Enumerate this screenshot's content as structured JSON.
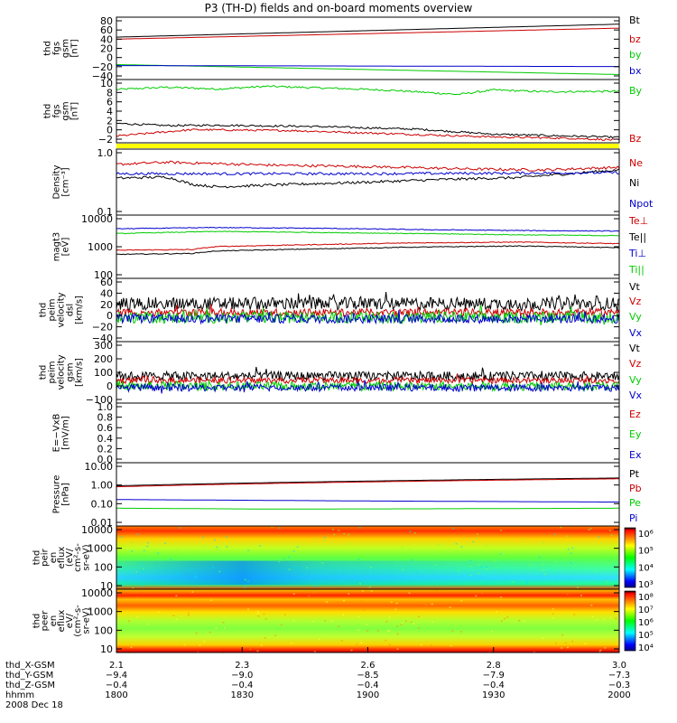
{
  "title": "P3 (TH-D) fields and on-board moments overview",
  "chart_data": [
    {
      "id": "fgs_gsm",
      "type": "line",
      "ylabel": "thd\nfgs\ngsm\n[nT]",
      "yticks": [
        "80",
        "60",
        "40",
        "20",
        "0",
        "−20",
        "−40"
      ],
      "ylim": [
        -40,
        85
      ],
      "series": [
        {
          "name": "Bt",
          "color": "#000000",
          "x": [
            0,
            1
          ],
          "y": [
            45,
            71
          ]
        },
        {
          "name": "bz",
          "color": "#cc0000",
          "x": [
            0,
            1
          ],
          "y": [
            41,
            63
          ]
        },
        {
          "name": "by",
          "color": "#00cc00",
          "x": [
            0,
            1
          ],
          "y": [
            -10,
            -30
          ]
        },
        {
          "name": "bx",
          "color": "#0000cc",
          "x": [
            0,
            1
          ],
          "y": [
            -12,
            -14
          ]
        }
      ]
    },
    {
      "id": "fgs_dsl",
      "type": "line",
      "ylabel": "thd\nfgs\ngsm\n[nT]",
      "yticks": [
        "10",
        "8",
        "6",
        "4",
        "2",
        "0",
        "−2"
      ],
      "ylim": [
        -3.5,
        10.5
      ],
      "series": [
        {
          "name": "By",
          "color": "#00cc00",
          "x": [
            0,
            0.1,
            0.2,
            0.3,
            0.45,
            0.55,
            0.68,
            0.75,
            0.85,
            1
          ],
          "y": [
            8.3,
            8.8,
            8.4,
            9.0,
            8.5,
            8.1,
            7.2,
            8.2,
            7.8,
            7.9
          ]
        },
        {
          "name": "Bx",
          "color": "#000000",
          "x": [
            0,
            0.1,
            0.2,
            0.4,
            0.6,
            0.75,
            0.9,
            1
          ],
          "y": [
            0.8,
            0.3,
            0.4,
            0.1,
            -0.5,
            -1.6,
            -2.0,
            -2.3
          ]
        },
        {
          "name": "Bz",
          "color": "#cc0000",
          "x": [
            0,
            0.15,
            0.35,
            0.55,
            0.75,
            0.9,
            1
          ],
          "y": [
            -2.0,
            -0.6,
            -0.8,
            -1.5,
            -2.2,
            -2.5,
            -2.9
          ]
        }
      ],
      "legend": [
        "By",
        "Bz"
      ]
    },
    {
      "id": "density",
      "type": "line",
      "ylabel": "Density\n[cm⁻³]",
      "yticks": [
        "1.0",
        "0.1"
      ],
      "scale": "log",
      "ylim": [
        0.1,
        1.3
      ],
      "series": [
        {
          "name": "Ne",
          "color": "#cc0000",
          "x": [
            0,
            0.1,
            0.3,
            0.5,
            0.7,
            0.85,
            1
          ],
          "y": [
            0.72,
            0.78,
            0.7,
            0.66,
            0.6,
            0.58,
            0.64
          ]
        },
        {
          "name": "Ni",
          "color": "#000000",
          "x": [
            0,
            0.1,
            0.15,
            0.2,
            0.35,
            0.5,
            0.65,
            0.8,
            0.9,
            1
          ],
          "y": [
            0.42,
            0.44,
            0.33,
            0.3,
            0.33,
            0.36,
            0.4,
            0.43,
            0.5,
            0.58
          ]
        },
        {
          "name": "Npot",
          "color": "#0000cc",
          "x": [
            0,
            0.5,
            1
          ],
          "y": [
            0.5,
            0.5,
            0.52
          ]
        }
      ]
    },
    {
      "id": "temperature",
      "type": "line",
      "ylabel": "magt3\n[eV]",
      "yticks": [
        "10000",
        "1000",
        "100"
      ],
      "scale": "log",
      "ylim": [
        100,
        14000
      ],
      "series": [
        {
          "name": "Te⊥",
          "color": "#cc0000",
          "x": [
            0,
            0.15,
            0.2,
            0.4,
            0.6,
            0.8,
            1
          ],
          "y": [
            900,
            950,
            1200,
            1400,
            1600,
            1700,
            1500
          ]
        },
        {
          "name": "Te||",
          "color": "#000000",
          "x": [
            0,
            0.15,
            0.2,
            0.4,
            0.6,
            0.8,
            1
          ],
          "y": [
            650,
            700,
            850,
            1000,
            1150,
            1250,
            1100
          ]
        },
        {
          "name": "Ti⊥",
          "color": "#0000cc",
          "x": [
            0,
            0.2,
            0.4,
            0.6,
            0.8,
            1
          ],
          "y": [
            4800,
            5300,
            5000,
            4500,
            4200,
            4000
          ]
        },
        {
          "name": "Ti||",
          "color": "#00cc00",
          "x": [
            0,
            0.2,
            0.4,
            0.6,
            0.8,
            1
          ],
          "y": [
            3300,
            3900,
            3600,
            3300,
            3000,
            2800
          ]
        }
      ]
    },
    {
      "id": "velocity_dsl",
      "type": "line",
      "ylabel": "thd\npeim\nvelocity\ndsl\n[km/s]",
      "yticks": [
        "60",
        "40",
        "20",
        "0",
        "−20",
        "−40"
      ],
      "ylim": [
        -40,
        60
      ],
      "noisy": true,
      "series": [
        {
          "name": "Vt",
          "color": "#000000",
          "mean": 20,
          "amp": 10
        },
        {
          "name": "Vz",
          "color": "#cc0000",
          "mean": 6,
          "amp": 6
        },
        {
          "name": "Vy",
          "color": "#00cc00",
          "mean": -2,
          "amp": 9
        },
        {
          "name": "Vx",
          "color": "#0000cc",
          "mean": -4,
          "amp": 7
        }
      ]
    },
    {
      "id": "velocity_gsm",
      "type": "line",
      "ylabel": "thd\npeim\nvelocity\ngsm\n[km/s]",
      "yticks": [
        "300",
        "200",
        "100",
        "0",
        "−100"
      ],
      "ylim": [
        -100,
        320
      ],
      "noisy": true,
      "series": [
        {
          "name": "Vt",
          "color": "#000000",
          "mean": 85,
          "amp": 30
        },
        {
          "name": "Vz",
          "color": "#cc0000",
          "mean": 55,
          "amp": 20
        },
        {
          "name": "Vy",
          "color": "#00cc00",
          "mean": 15,
          "amp": 30
        },
        {
          "name": "Vx",
          "color": "#0000cc",
          "mean": 5,
          "amp": 25
        }
      ]
    },
    {
      "id": "efield",
      "type": "line",
      "ylabel": "E=−VxB\n[mV/m]",
      "yticks": [
        "1.0",
        "0.8",
        "0.6",
        "0.4",
        "0.2",
        "0.0"
      ],
      "ylim": [
        0,
        1
      ],
      "series": [
        {
          "name": "Ez",
          "color": "#cc0000"
        },
        {
          "name": "Ey",
          "color": "#00cc00"
        },
        {
          "name": "Ex",
          "color": "#0000cc"
        }
      ]
    },
    {
      "id": "pressure",
      "type": "line",
      "ylabel": "Pressure\n[nPa]",
      "yticks": [
        "10.00",
        "1.00",
        "0.10",
        "0.01"
      ],
      "scale": "log",
      "ylim": [
        0.01,
        13
      ],
      "series": [
        {
          "name": "Pt",
          "color": "#000000",
          "x": [
            0,
            1
          ],
          "y": [
            0.95,
            2.3
          ]
        },
        {
          "name": "Pb",
          "color": "#cc0000",
          "x": [
            0,
            1
          ],
          "y": [
            0.85,
            2.1
          ]
        },
        {
          "name": "Pe",
          "color": "#00cc00",
          "x": [
            0,
            0.3,
            0.6,
            1
          ],
          "y": [
            0.075,
            0.068,
            0.07,
            0.075
          ]
        },
        {
          "name": "Pi",
          "color": "#0000cc",
          "x": [
            0,
            0.5,
            1
          ],
          "y": [
            0.2,
            0.17,
            0.15
          ]
        }
      ]
    },
    {
      "id": "ion_spectrogram",
      "type": "heatmap",
      "ylabel": "thd\npeir\nen\neflux\n(eV/\ncm²-s-\nsr-eV)",
      "yticks": [
        "10000",
        "1000",
        "100",
        "10"
      ],
      "colorbar_ticks": [
        "10⁶",
        "10⁵",
        "10⁴",
        "10³"
      ]
    },
    {
      "id": "electron_spectrogram",
      "type": "heatmap",
      "ylabel": "thd\npeer\nen\neflux\neV/\n(cm²-s-\nsr-eV)",
      "yticks": [
        "10000",
        "1000",
        "100",
        "10"
      ],
      "colorbar_ticks": [
        "10⁸",
        "10⁷",
        "10⁶",
        "10⁵",
        "10⁴"
      ]
    }
  ],
  "xaxis": {
    "labels": [
      "thd_X-GSM",
      "thd_Y-GSM",
      "thd_Z-GSM",
      "hhmm",
      "2008 Dec 18"
    ],
    "ticks": [
      {
        "x": 0,
        "vals": [
          "2.1",
          "−9.4",
          "−0.4",
          "1800"
        ]
      },
      {
        "x": 0.2,
        "vals": [
          "2.3",
          "−9.0",
          "−0.4",
          "1830"
        ]
      },
      {
        "x": 0.4,
        "vals": [
          "2.6",
          "−8.5",
          "−0.4",
          "1900"
        ]
      },
      {
        "x": 0.6,
        "vals": [
          "2.8",
          "−7.9",
          "−0.4",
          "1930"
        ]
      },
      {
        "x": 0.8,
        "vals": [
          "3.0",
          "−7.3",
          "−0.3",
          "2000"
        ]
      }
    ]
  }
}
